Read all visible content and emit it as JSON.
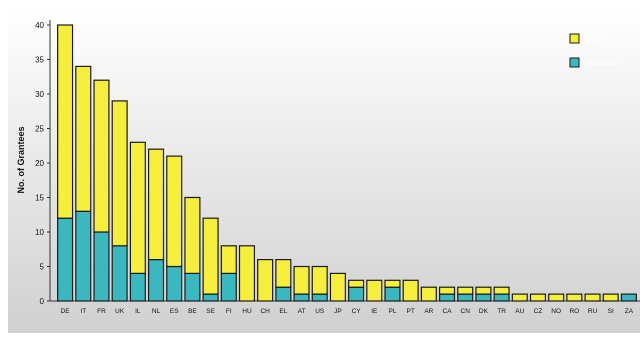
{
  "colors": {
    "male": "#f5ee3a",
    "female": "#3ab8bf",
    "outline": "#1a1a1a",
    "plot_bg_top": "#ffffff",
    "plot_bg_bottom": "#d0d0d0"
  },
  "chart_data": {
    "type": "bar",
    "stacked": true,
    "ylabel": "No. of Grantees",
    "xlabel": "",
    "ylim": [
      0,
      40
    ],
    "yticks": [
      0,
      5,
      10,
      15,
      20,
      25,
      30,
      35,
      40
    ],
    "grid": false,
    "legend_position": "top-right",
    "categories": [
      "DE",
      "IT",
      "FR",
      "UK",
      "IL",
      "NL",
      "ES",
      "BE",
      "SE",
      "FI",
      "HU",
      "CH",
      "EL",
      "AT",
      "US",
      "JP",
      "CY",
      "IE",
      "PL",
      "PT",
      "AR",
      "CA",
      "CN",
      "DK",
      "TR",
      "AU",
      "CZ",
      "NO",
      "RO",
      "RU",
      "SI",
      "ZA"
    ],
    "series": [
      {
        "name": "Female",
        "values": [
          12,
          13,
          10,
          8,
          4,
          6,
          5,
          4,
          1,
          4,
          0,
          0,
          2,
          1,
          1,
          0,
          2,
          0,
          2,
          0,
          0,
          1,
          1,
          1,
          1,
          0,
          0,
          0,
          0,
          0,
          0,
          1
        ]
      },
      {
        "name": "Male",
        "values": [
          28,
          21,
          22,
          21,
          19,
          16,
          16,
          11,
          11,
          4,
          8,
          6,
          4,
          4,
          4,
          4,
          1,
          3,
          1,
          3,
          2,
          1,
          1,
          1,
          1,
          1,
          1,
          1,
          1,
          1,
          1,
          0
        ]
      }
    ],
    "totals": [
      40,
      34,
      32,
      29,
      23,
      22,
      21,
      15,
      12,
      8,
      8,
      6,
      6,
      5,
      5,
      4,
      3,
      3,
      3,
      3,
      2,
      2,
      2,
      2,
      2,
      1,
      1,
      1,
      1,
      1,
      1,
      1
    ]
  }
}
